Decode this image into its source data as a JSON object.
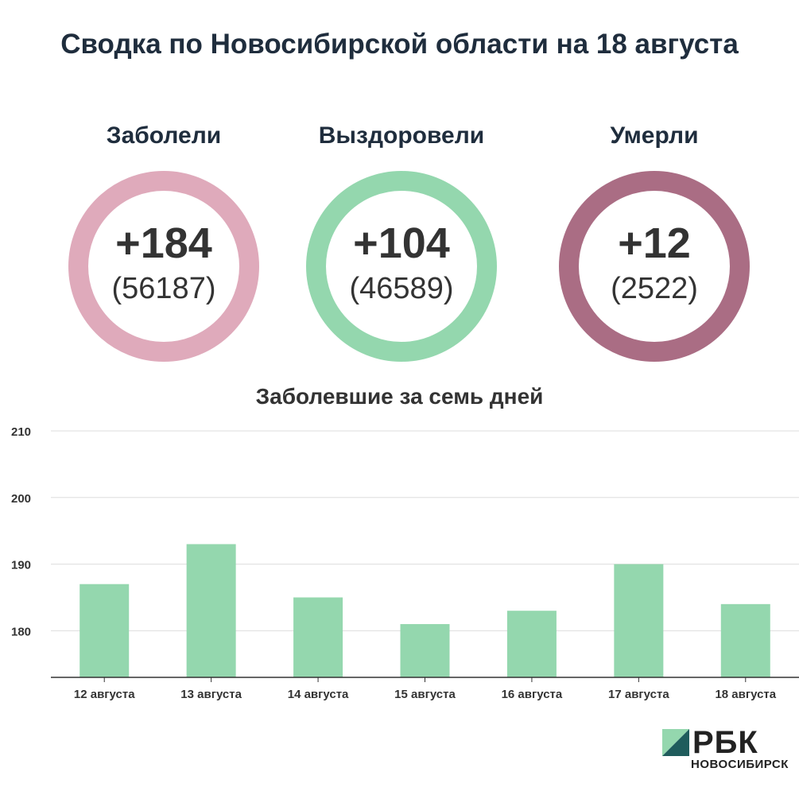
{
  "page_title": "Сводка по Новосибирской области на 18 августа",
  "stats": [
    {
      "label": "Заболели",
      "delta": "+184",
      "total": "(56187)",
      "ring_color": "#dfaabb"
    },
    {
      "label": "Выздоровели",
      "delta": "+104",
      "total": "(46589)",
      "ring_color": "#94d7ae"
    },
    {
      "label": "Умерли",
      "delta": "+12",
      "total": "(2522)",
      "ring_color": "#aa6d84"
    }
  ],
  "chart_data": {
    "type": "bar",
    "title": "Заболевшие за семь дней",
    "categories": [
      "12 августа",
      "13 августа",
      "14 августа",
      "15 августа",
      "16 августа",
      "17 августа",
      "18 августа"
    ],
    "values": [
      187,
      193,
      185,
      181,
      183,
      190,
      184
    ],
    "ylim": [
      173,
      210
    ],
    "yticks": [
      180,
      190,
      200,
      210
    ],
    "grid": true,
    "bar_color": "#94d7ae",
    "xlabel": "",
    "ylabel": ""
  },
  "logo": {
    "name": "РБК",
    "city": "НОВОСИБИРСК",
    "colors": [
      "#94d7ae",
      "#1f5c5c"
    ]
  }
}
